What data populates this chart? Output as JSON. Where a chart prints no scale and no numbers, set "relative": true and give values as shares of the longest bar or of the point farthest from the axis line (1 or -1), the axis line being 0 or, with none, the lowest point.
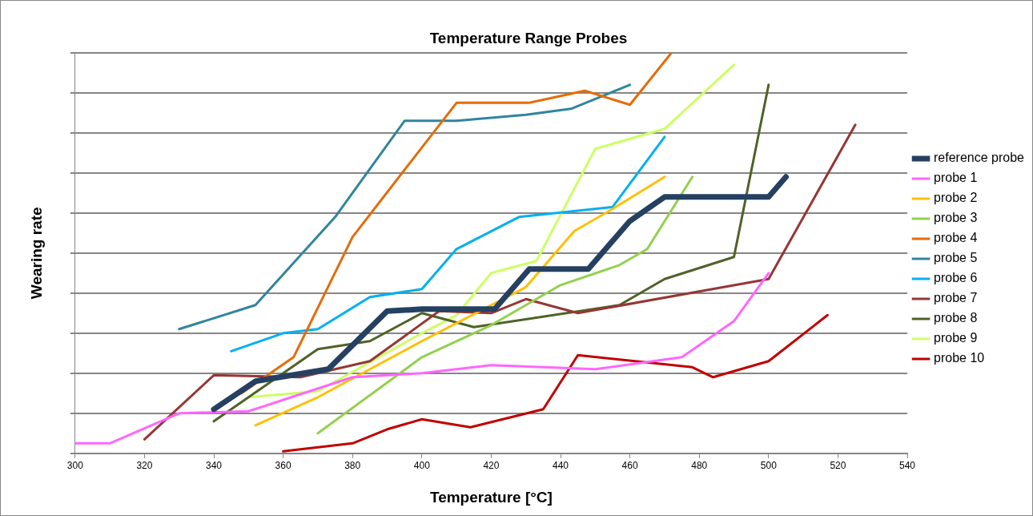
{
  "chart_data": {
    "type": "line",
    "title": "Temperature Range Probes",
    "xlabel": "Temperature [°C]",
    "ylabel": "Wearing rate",
    "relative": true,
    "xlim": [
      300,
      540
    ],
    "xticks": [
      300,
      320,
      340,
      360,
      380,
      400,
      420,
      440,
      460,
      480,
      500,
      520,
      540
    ],
    "grid": "y",
    "legend": "right",
    "marker": "none",
    "line_style": "solid",
    "series": [
      {
        "name": "reference probe",
        "color": "#254061",
        "x": [
          340,
          352,
          373,
          390,
          400,
          421,
          431,
          448,
          460,
          470,
          500,
          505
        ],
        "values": [
          0.11,
          0.18,
          0.21,
          0.355,
          0.36,
          0.36,
          0.46,
          0.46,
          0.58,
          0.64,
          0.64,
          0.69
        ]
      },
      {
        "name": "probe 1",
        "color": "#ff66ff",
        "x": [
          300,
          310,
          330,
          350,
          380,
          400,
          420,
          450,
          475,
          490,
          500
        ],
        "values": [
          0.025,
          0.025,
          0.1,
          0.105,
          0.19,
          0.2,
          0.22,
          0.21,
          0.24,
          0.33,
          0.45
        ]
      },
      {
        "name": "probe 2",
        "color": "#ffc000",
        "x": [
          352,
          370,
          400,
          420,
          430,
          444,
          455,
          470
        ],
        "values": [
          0.07,
          0.14,
          0.28,
          0.37,
          0.415,
          0.555,
          0.61,
          0.69
        ]
      },
      {
        "name": "probe 3",
        "color": "#92d050",
        "x": [
          370,
          400,
          420,
          440,
          457,
          465,
          478
        ],
        "values": [
          0.05,
          0.24,
          0.32,
          0.42,
          0.47,
          0.51,
          0.69
        ]
      },
      {
        "name": "probe 4",
        "color": "#e46c0a",
        "x": [
          348,
          363,
          380,
          410,
          431,
          447,
          460,
          472
        ],
        "values": [
          0.15,
          0.24,
          0.54,
          0.875,
          0.875,
          0.905,
          0.87,
          1.0
        ]
      },
      {
        "name": "probe 5",
        "color": "#31859c",
        "x": [
          330,
          352,
          375,
          395,
          410,
          430,
          443,
          460
        ],
        "values": [
          0.31,
          0.37,
          0.59,
          0.83,
          0.83,
          0.845,
          0.86,
          0.92
        ]
      },
      {
        "name": "probe 6",
        "color": "#00b0f0",
        "x": [
          345,
          360,
          370,
          385,
          400,
          410,
          428,
          455,
          470
        ],
        "values": [
          0.255,
          0.3,
          0.31,
          0.39,
          0.41,
          0.51,
          0.59,
          0.615,
          0.79
        ]
      },
      {
        "name": "probe 7",
        "color": "#953735",
        "x": [
          320,
          340,
          365,
          385,
          405,
          420,
          430,
          445,
          500,
          525
        ],
        "values": [
          0.035,
          0.195,
          0.19,
          0.23,
          0.355,
          0.35,
          0.385,
          0.35,
          0.435,
          0.82
        ]
      },
      {
        "name": "probe 8",
        "color": "#4f6228",
        "x": [
          340,
          370,
          385,
          400,
          415,
          457,
          470,
          490,
          500
        ],
        "values": [
          0.08,
          0.26,
          0.28,
          0.35,
          0.315,
          0.37,
          0.435,
          0.49,
          0.92
        ]
      },
      {
        "name": "probe 9",
        "color": "#ccff66",
        "x": [
          350,
          370,
          400,
          410,
          420,
          433,
          450,
          470,
          490
        ],
        "values": [
          0.14,
          0.155,
          0.3,
          0.345,
          0.45,
          0.48,
          0.76,
          0.81,
          0.97
        ]
      },
      {
        "name": "probe 10",
        "color": "#c00000",
        "x": [
          360,
          380,
          390,
          400,
          414,
          435,
          445,
          478,
          484,
          500,
          517
        ],
        "values": [
          0.005,
          0.025,
          0.06,
          0.085,
          0.065,
          0.11,
          0.245,
          0.215,
          0.19,
          0.23,
          0.345
        ]
      }
    ]
  }
}
